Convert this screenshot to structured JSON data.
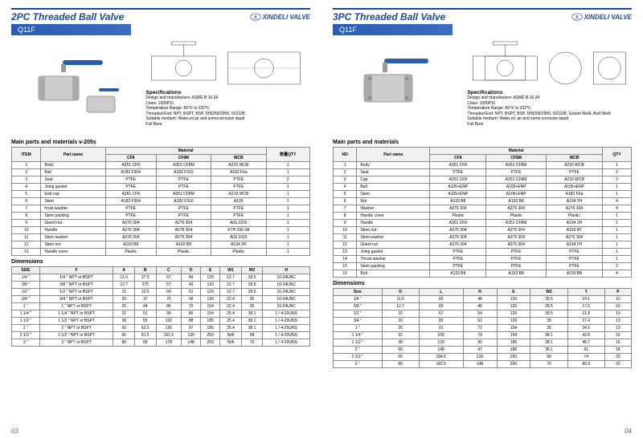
{
  "brand": "XINDELI VALVE",
  "colors": {
    "accent": "#1a4a9e",
    "bar": "#2a5db0",
    "border": "#888",
    "th_bg": "#f0f0f0"
  },
  "left": {
    "title": "2PC Threaded Ball Valve",
    "model": "Q11F",
    "spec_title": "Specifications",
    "spec_lines": [
      "Design and manufacture: ASME B 16.34",
      "Class: 1000PSI",
      "Temperature Range:-50℃ to 232℃",
      "Threaded End: NPT, BSPT, BSP, DIN259/2999, ISO228",
      "Suitable medium: Water,oil,air and somecorrosive liquid",
      "Full Bore"
    ],
    "parts_title": "Main parts and materials v-205s",
    "parts_headers": [
      "ITEM",
      "Part name",
      "Material",
      "",
      "",
      "数量QTY"
    ],
    "parts_sub": [
      "",
      "",
      "CF8",
      "CF8M",
      "WCB",
      ""
    ],
    "parts": [
      [
        "1",
        "Body",
        "A351 CF8",
        "A351 CF8M",
        "A216 WCB",
        "1"
      ],
      [
        "2",
        "Ball",
        "A182 F304",
        "A182 F316",
        "A182 F6a",
        "1"
      ],
      [
        "3",
        "Seat",
        "PTFE",
        "PTFE",
        "PTFE",
        "2"
      ],
      [
        "4",
        "Joing gasket",
        "PTFE",
        "PTFE",
        "PTFE",
        "1"
      ],
      [
        "5",
        "End cap",
        "A351 CF8",
        "A351 CF8M",
        "A218 WCB",
        "1"
      ],
      [
        "6",
        "Stem",
        "A182 F304",
        "A182 F316",
        "A105",
        "1"
      ],
      [
        "7",
        "hrust washer",
        "PTFE",
        "PTFE",
        "PTFE",
        "1"
      ],
      [
        "8",
        "Stem packing",
        "PTFE",
        "PTFE",
        "PTFE",
        "1"
      ],
      [
        "9",
        "Gland nut",
        "A276 304",
        "A276 304",
        "AiSi 1035",
        "1"
      ],
      [
        "10",
        "Handle",
        "A276 304",
        "A276 304",
        "KTH 330-08",
        "1"
      ],
      [
        "11",
        "Stem washer",
        "A276 304",
        "A276 304",
        "AiSi 1025",
        "1"
      ],
      [
        "12",
        "Stem nut",
        "A193 B8",
        "A193 B8",
        "A194 2H",
        "1"
      ],
      [
        "13",
        "Handle cover",
        "Plastic",
        "Plastic",
        "Plastic",
        "1"
      ]
    ],
    "dim_title": "Dimensions",
    "dim_headers": [
      "SIZE",
      "F",
      "A",
      "B",
      "C",
      "D",
      "E",
      "W1",
      "W2",
      "H"
    ],
    "dims": [
      [
        "1/4 \"",
        "1/4 \" NPT or BSPT",
        "11.6",
        "27.5",
        "57",
        "49",
        "120",
        "12.7",
        "28.5",
        "10-24UNC"
      ],
      [
        "3/8 \"",
        "3/8 \" NPT or BSPT",
        "12.7",
        "275",
        "57",
        "49",
        "120",
        "12.7",
        "28.5",
        "10-24UNC"
      ],
      [
        "1/2 \"",
        "1/2 \" NPT or BSPT",
        "15",
        "32.5",
        "64",
        "51",
        "120",
        "12.7",
        "28.5",
        "10-24UNC"
      ],
      [
        "3/4 \"",
        "3/4 \" NPT or BSPT",
        "20",
        "37",
        "75",
        "58",
        "130",
        "22.4",
        "35",
        "10-24UNC"
      ],
      [
        "1 \"",
        "1 \" NPT or BSPT",
        "25",
        "44",
        "86",
        "70",
        "154",
        "22.4",
        "35",
        "10-24UNC"
      ],
      [
        "1 1/4 \"",
        "1 1/4 \" NPT or BSPT",
        "32",
        "51",
        "99",
        "80",
        "154",
        "25.4",
        "38.1",
        "1 / 4-20UNS"
      ],
      [
        "1 1/2 \"",
        "1 1/2 \" NPT or BSPT",
        "38",
        "55",
        "118",
        "88",
        "185",
        "25.4",
        "38.1",
        "1 / 4-20UNS"
      ],
      [
        "2 \"",
        "2 \" NPT or BSPT",
        "50",
        "62.5",
        "136",
        "97",
        "185",
        "25.4",
        "38.1",
        "1 / 4-20UNS"
      ],
      [
        "2 1/2 \"",
        "2 1/2 \" NPT or BSPT",
        "65",
        "81.5",
        "161.5",
        "130",
        "250",
        "N/A",
        "58",
        "1 / 4-20UNS"
      ],
      [
        "3 \"",
        "3 \" NPT or BSPT",
        "80",
        "89",
        "178",
        "148",
        "250",
        "N/A",
        "70",
        "1 / 4-20UNS"
      ]
    ],
    "page": "03"
  },
  "right": {
    "title": "3PC Threaded Ball Valve",
    "model": "Q11F",
    "spec_title": "Specifications",
    "spec_lines": [
      "Design and manufacture: ASME B 16.34",
      "Class: 1000PSI",
      "Temperature Range:-50℃ to 232℃",
      "Threaded End: NPT, BSPT, BSP, DIN259/2999, ISO228, Socket Weld, Butt Weld",
      "Suitable medium: Water,oil ,air and some corrosive liquid",
      "Full Bore"
    ],
    "parts_title": "Main parts and materials",
    "parts_headers": [
      "NO",
      "Part name",
      "Material",
      "",
      "",
      "QTY"
    ],
    "parts_sub": [
      "",
      "",
      "CF8",
      "CF8M",
      "WCB",
      ""
    ],
    "parts": [
      [
        "1",
        "Body",
        "A351 CF8",
        "A351 CF8M",
        "A216 WCB",
        "1"
      ],
      [
        "2",
        "Seat",
        "PTFE",
        "PTFE",
        "PTFE",
        "2"
      ],
      [
        "3",
        "Cap",
        "A351 CF8",
        "A351 CF8M",
        "A216 WCB",
        "2"
      ],
      [
        "4",
        "Ball",
        "A105+ENP",
        "A105+ENP",
        "A105+ENP",
        "1"
      ],
      [
        "5",
        "Stem",
        "A105+ENP",
        "A105+ENP",
        "A182 F6a",
        "1"
      ],
      [
        "6",
        "Nut",
        "A193 B8",
        "A193 B8",
        "A194 2H",
        "4"
      ],
      [
        "7",
        "Washer",
        "A276 304",
        "A276 304",
        "A276 304",
        "4"
      ],
      [
        "8",
        "Handle cover",
        "Plastic",
        "Plastic",
        "Plastic",
        "1"
      ],
      [
        "9",
        "Handle",
        "A351 CF8",
        "A351 CF8M",
        "A194 2H",
        "1"
      ],
      [
        "10",
        "Stem nut",
        "A276 304",
        "A276 304",
        "A193 BT",
        "1"
      ],
      [
        "11",
        "Stem washer",
        "A276 304",
        "A276 304",
        "A276 304",
        "1"
      ],
      [
        "12",
        "Gland nut",
        "A276 304",
        "A276 304",
        "A194 2H",
        "1"
      ],
      [
        "13",
        "Joing gasket",
        "PTFE",
        "PTFE",
        "PTFE",
        "1"
      ],
      [
        "14",
        "Thrust washer",
        "PTFE",
        "PTFE",
        "PTFE",
        "1"
      ],
      [
        "15",
        "Stem packing",
        "PTFE",
        "PTFE",
        "PTFE",
        "2"
      ],
      [
        "16",
        "Bolt",
        "A193 B8",
        "A193 B8",
        "A193 B8",
        "4"
      ]
    ],
    "dim_title": "Dimensions",
    "dim_headers": [
      "Size",
      "D",
      "L",
      "H",
      "E",
      "W2",
      "Y",
      "P"
    ],
    "dims": [
      [
        "1/4 \"",
        "11.6",
        "65",
        "48",
        "120",
        "28.5",
        "14.1",
        "10"
      ],
      [
        "3/8 \"",
        "12.7",
        "65",
        "48",
        "120",
        "28.5",
        "17.6",
        "10"
      ],
      [
        "1/2 \"",
        "15",
        "67",
        "54",
        "120",
        "28.5",
        "21.8",
        "10"
      ],
      [
        "3/4 \"",
        "20",
        "82",
        "62",
        "130",
        "35",
        "27.4",
        "13"
      ],
      [
        "1 \"",
        "25",
        "91",
        "72",
        "154",
        "35",
        "34.1",
        "13"
      ],
      [
        "1 1/4 \"",
        "32",
        "106",
        "79",
        "154",
        "38.1",
        "42.8",
        "16"
      ],
      [
        "1 1/2 \"",
        "38",
        "129",
        "90",
        "185",
        "38.1",
        "48.7",
        "16"
      ],
      [
        "2 \"",
        "50",
        "148",
        "97",
        "185",
        "38.1",
        "61",
        "18"
      ],
      [
        "2 1/2 \"",
        "65",
        "184.5",
        "130",
        "250",
        "58",
        "74",
        "20"
      ],
      [
        "3 \"",
        "80",
        "182.5",
        "148",
        "250",
        "70",
        "89.9",
        "20"
      ]
    ],
    "page": "04"
  }
}
